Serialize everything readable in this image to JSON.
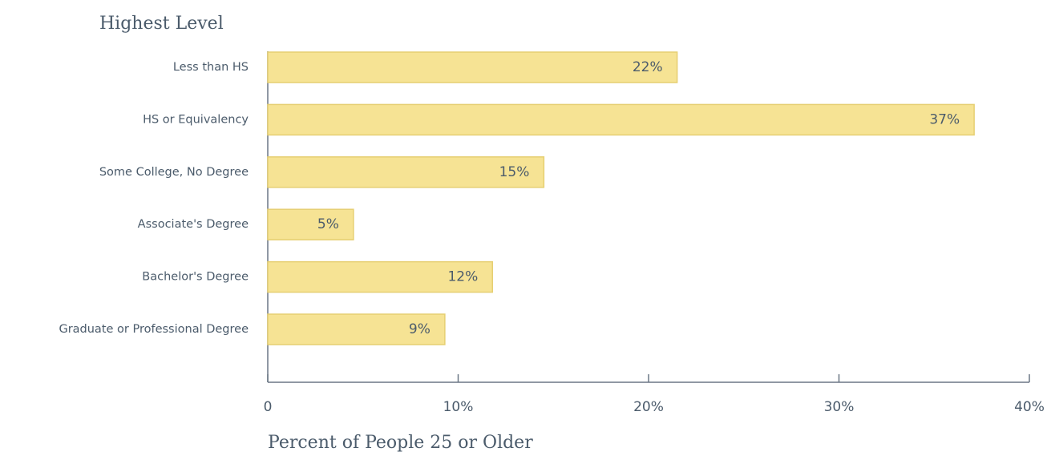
{
  "chart_data": {
    "type": "bar",
    "orientation": "horizontal",
    "title": "Highest Level",
    "x_label": "Percent of People 25 or Older",
    "categories": [
      "Less than HS",
      "HS or Equivalency",
      "Some College, No Degree",
      "Associate's Degree",
      "Bachelor's Degree",
      "Graduate or Professional Degree"
    ],
    "values": [
      21.5,
      37.1,
      14.5,
      4.5,
      11.8,
      9.3
    ],
    "value_labels": [
      "22%",
      "37%",
      "15%",
      "5%",
      "12%",
      "9%"
    ],
    "color": "#f6e394",
    "xlim": [
      0,
      40
    ],
    "xticks": [
      0,
      {
        "value": 10,
        "label": "10%"
      },
      {
        "value": 20,
        "label": "20%"
      },
      {
        "value": 30,
        "label": "30%"
      },
      {
        "value": 40,
        "label": "40%"
      }
    ]
  }
}
